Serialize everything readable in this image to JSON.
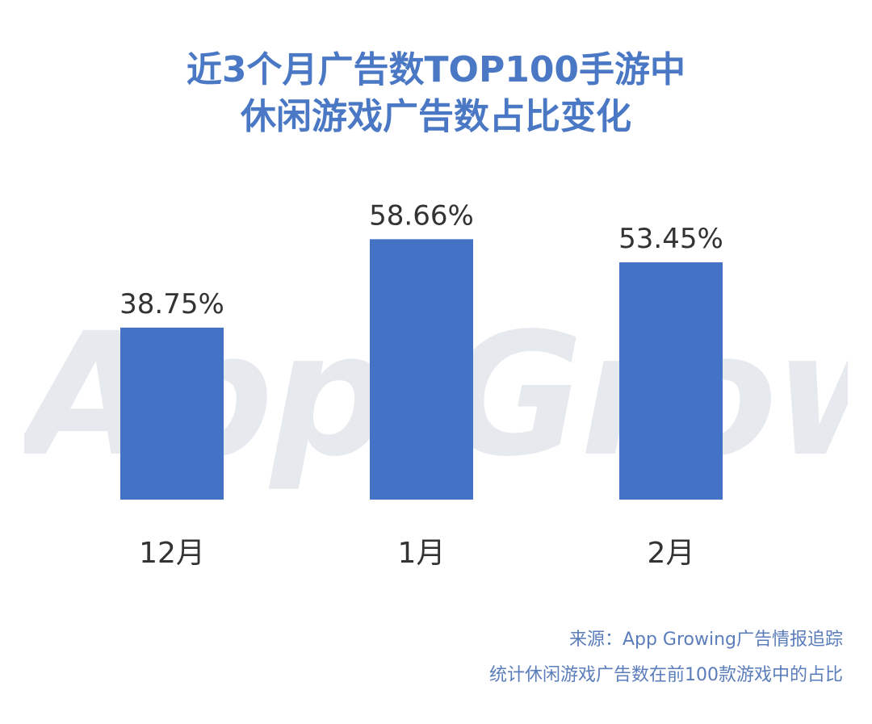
{
  "title": {
    "line1": "近3个月广告数TOP100手游中",
    "line2": "休闲游戏广告数占比变化"
  },
  "watermark": "App Growing",
  "colors": {
    "title": "#4a78c4",
    "bar": "#4472c4",
    "label": "#333333",
    "source": "#5b7dbb",
    "watermark": "#e6eaef"
  },
  "chart_data": {
    "type": "bar",
    "categories": [
      "12月",
      "1月",
      "2月"
    ],
    "values": [
      38.75,
      58.66,
      53.45
    ],
    "value_labels": [
      "38.75%",
      "58.66%",
      "53.45%"
    ],
    "unit": "%",
    "title": "近3个月广告数TOP100手游中休闲游戏广告数占比变化",
    "xlabel": "",
    "ylabel": "",
    "ylim": [
      0,
      100
    ],
    "grid": false,
    "legend": "none"
  },
  "footer": {
    "source": "来源：App Growing广告情报追踪",
    "note": "统计休闲游戏广告数在前100款游戏中的占比"
  }
}
